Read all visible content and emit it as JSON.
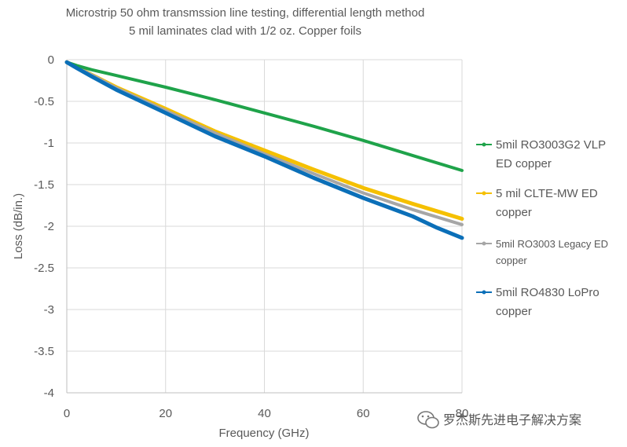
{
  "chart_data": {
    "type": "line",
    "title_lines": [
      "Microstrip 50 ohm transmssion line testing, differential length method",
      "5 mil laminates clad with 1/2 oz. Copper foils"
    ],
    "xlabel": "Frequency (GHz)",
    "ylabel": "Loss (dB/in.)",
    "xlim": [
      0,
      80
    ],
    "ylim": [
      -4,
      0
    ],
    "xticks": [
      0,
      20,
      40,
      60,
      80
    ],
    "xtick_labels": [
      "0",
      "20",
      "40",
      "60",
      "80"
    ],
    "yticks": [
      0,
      -0.5,
      -1,
      -1.5,
      -2,
      -2.5,
      -3,
      -3.5,
      -4
    ],
    "ytick_labels": [
      "0",
      "-0.5",
      "-1",
      "-1.5",
      "-2",
      "-2.5",
      "-3",
      "-3.5",
      "-4"
    ],
    "grid": true,
    "legend_position": "right",
    "series": [
      {
        "name_lines": [
          "5mil RO3003G2 VLP",
          "ED copper"
        ],
        "color": "#1fa34a",
        "x": [
          0,
          2,
          5,
          10,
          20,
          30,
          40,
          50,
          60,
          70,
          80
        ],
        "y": [
          -0.03,
          -0.07,
          -0.12,
          -0.19,
          -0.33,
          -0.48,
          -0.64,
          -0.8,
          -0.97,
          -1.15,
          -1.33
        ]
      },
      {
        "name_lines": [
          "5 mil CLTE-MW ED",
          "copper"
        ],
        "color": "#f5c000",
        "x": [
          0,
          2,
          5,
          10,
          20,
          30,
          40,
          50,
          60,
          70,
          80
        ],
        "y": [
          -0.03,
          -0.09,
          -0.18,
          -0.33,
          -0.59,
          -0.86,
          -1.09,
          -1.32,
          -1.54,
          -1.73,
          -1.91
        ]
      },
      {
        "name_lines": [
          "5mil RO3003 Legacy ED",
          "copper"
        ],
        "color": "#a6a6a6",
        "x": [
          0,
          2,
          5,
          10,
          20,
          30,
          40,
          50,
          60,
          70,
          80
        ],
        "y": [
          -0.03,
          -0.09,
          -0.18,
          -0.34,
          -0.61,
          -0.88,
          -1.13,
          -1.37,
          -1.6,
          -1.8,
          -1.98
        ]
      },
      {
        "name_lines": [
          "5mil RO4830 LoPro",
          "copper"
        ],
        "color": "#0b6fb8",
        "x": [
          0,
          2,
          5,
          10,
          20,
          30,
          40,
          50,
          60,
          70,
          75,
          80
        ],
        "y": [
          -0.03,
          -0.1,
          -0.2,
          -0.36,
          -0.64,
          -0.92,
          -1.16,
          -1.42,
          -1.66,
          -1.88,
          -2.02,
          -2.14
        ]
      }
    ]
  },
  "watermark": {
    "text": "罗杰斯先进电子解决方案",
    "icon": "wechat-icon"
  }
}
